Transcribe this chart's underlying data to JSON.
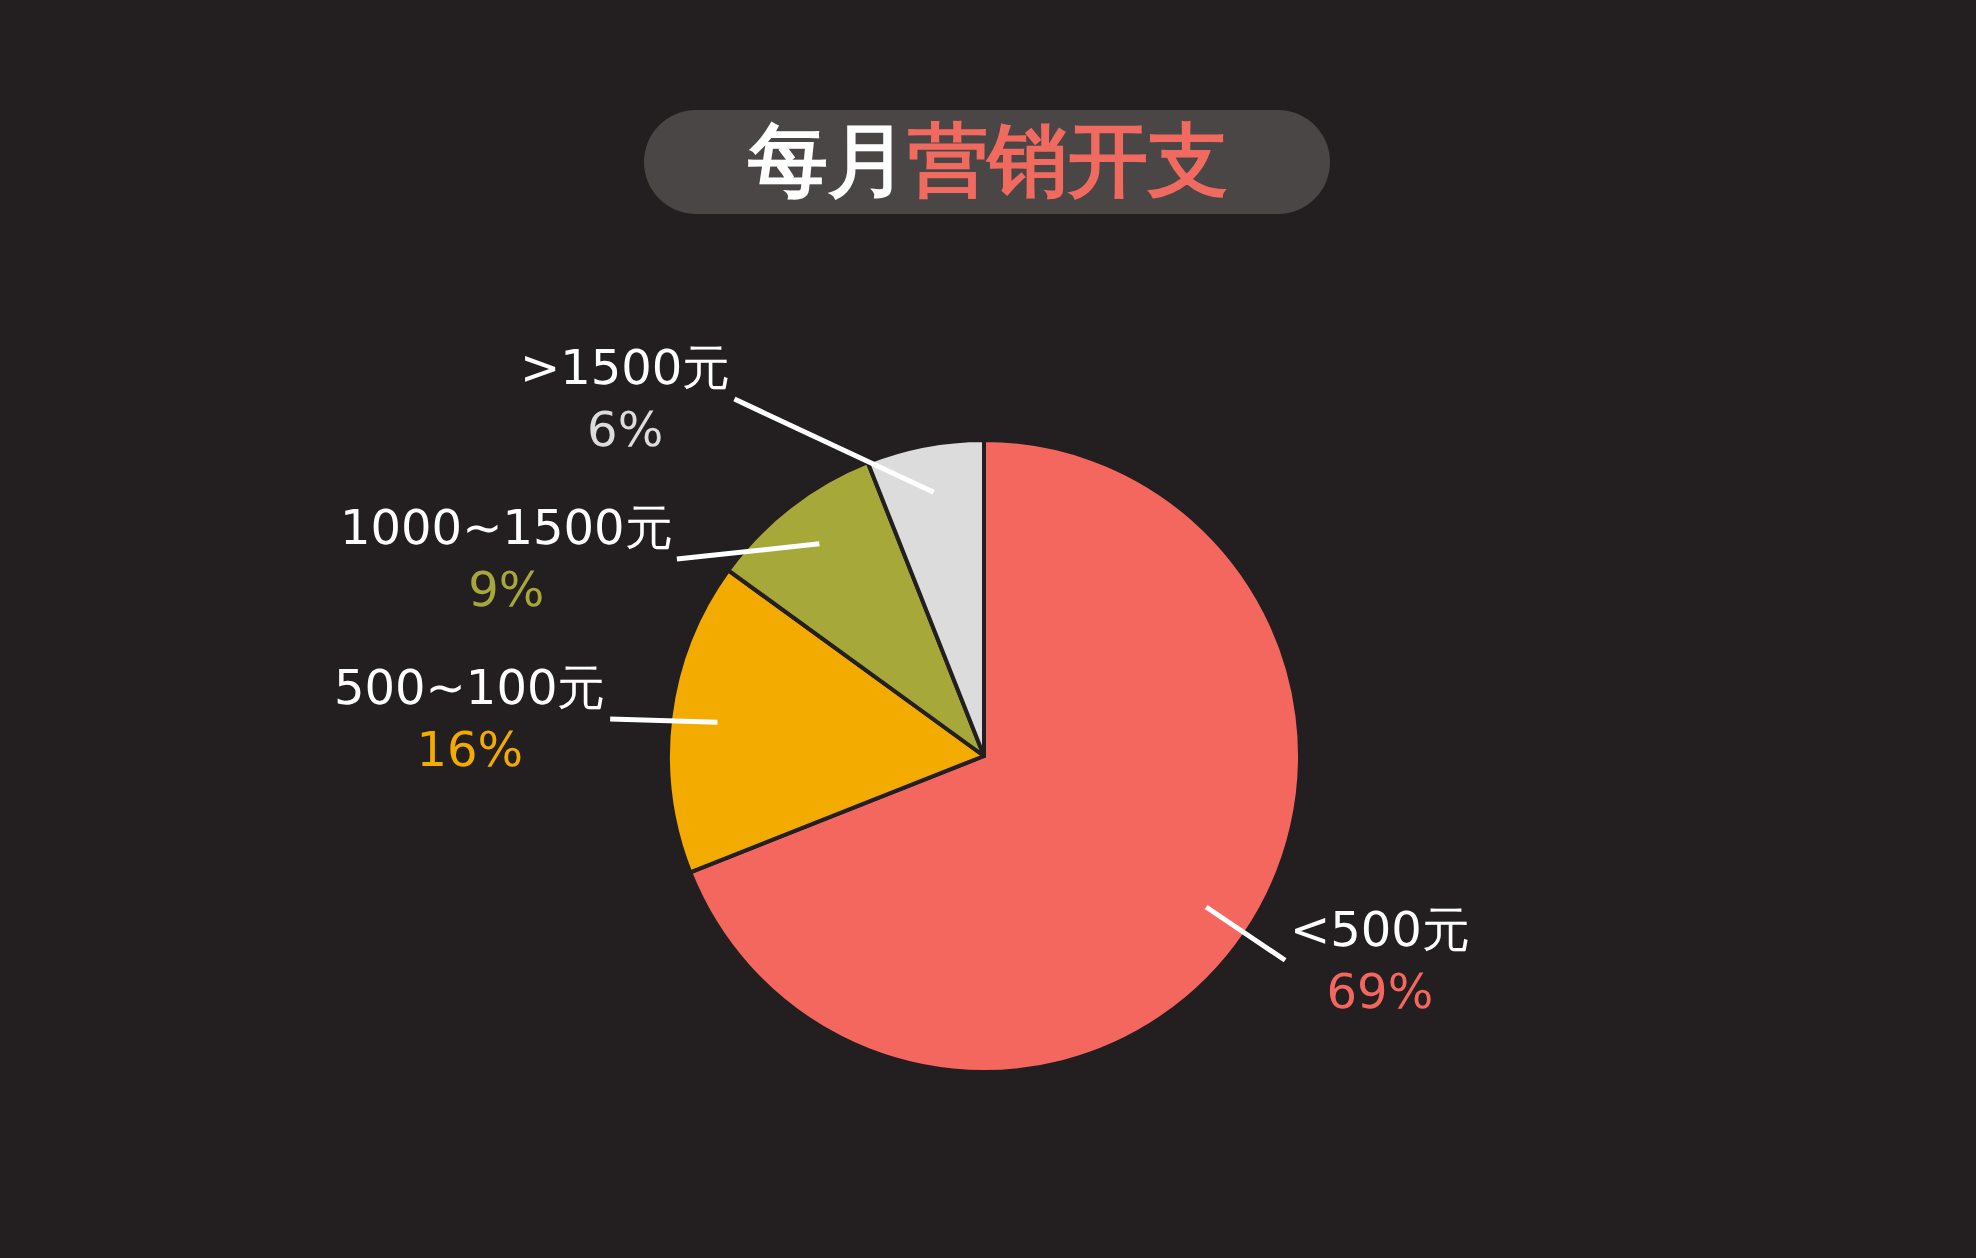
{
  "chart_data": {
    "type": "pie",
    "title": "每月营销开支",
    "categories": [
      "<500元",
      "500~100元",
      "1000~1500元",
      ">1500元"
    ],
    "values": [
      69,
      16,
      9,
      6
    ],
    "value_labels": [
      "69%",
      "16%",
      "9%",
      "6%"
    ],
    "colors": [
      "#f4675e",
      "#f4ab00",
      "#a6a83a",
      "#dcdcdc"
    ]
  }
}
